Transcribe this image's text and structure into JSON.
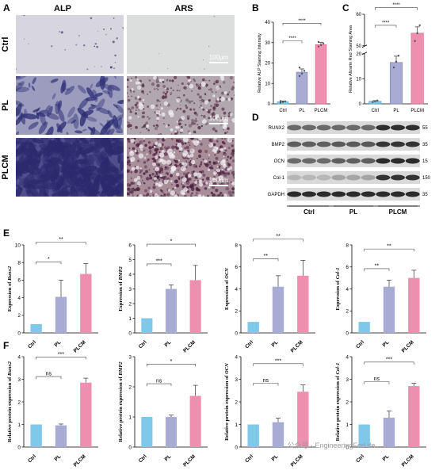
{
  "panel_letters": [
    "A",
    "B",
    "C",
    "D",
    "E",
    "F"
  ],
  "panel_a": {
    "column_headers": [
      "ALP",
      "ARS"
    ],
    "row_labels": [
      "Ctrl",
      "PL",
      "PLCM"
    ],
    "scale_bar_label": "100μm",
    "colors": {
      "alp_ctrl": "#d7d6df",
      "alp_pl": "#9c9cbe",
      "alp_plcm": "#4f4f8e",
      "ars_ctrl": "#dcdede",
      "ars_pl": "#b2a7ae",
      "ars_plcm": "#a88e99"
    }
  },
  "colors": {
    "ctrl": "#7fc8ea",
    "pl": "#a8abd4",
    "plcm": "#ef8fb0",
    "ctrl_edge": "#4ca3cf",
    "pl_edge": "#7a7eb6",
    "plcm_edge": "#d8618f"
  },
  "chart_data": [
    {
      "id": "B",
      "type": "bar",
      "categories": [
        "Ctrl",
        "PL",
        "PLCM"
      ],
      "values": [
        1,
        15.5,
        29
      ],
      "errors": [
        0.4,
        1.6,
        1.1
      ],
      "points": [
        [
          0.6,
          0.9,
          1.2,
          1.4
        ],
        [
          13.6,
          14.8,
          16.2,
          17.8
        ],
        [
          28.1,
          28.8,
          29.6,
          30.3
        ]
      ],
      "ylabel": "Relative ALP Staining Intensity",
      "ylim": [
        0,
        40
      ],
      "yticks": [
        0,
        10,
        20,
        30,
        40
      ],
      "significance": [
        {
          "from": 0,
          "to": 1,
          "label": "****"
        },
        {
          "from": 0,
          "to": 2,
          "label": "****"
        }
      ]
    },
    {
      "id": "C",
      "type": "bar",
      "categories": [
        "Ctrl",
        "PL",
        "PLCM"
      ],
      "values": [
        1,
        16.5,
        54
      ],
      "errors": [
        0.3,
        2.5,
        2
      ],
      "points": [
        [
          0.7,
          1.0,
          1.3
        ],
        [
          14.5,
          16.8,
          19.2
        ],
        [
          51.5,
          54,
          56.5
        ]
      ],
      "ylabel": "Relative Alizarin Red Staining Area",
      "axis_break": true,
      "yticks": [
        0,
        10,
        20,
        50,
        60
      ],
      "significance": [
        {
          "from": 0,
          "to": 1,
          "label": "****"
        },
        {
          "from": 0,
          "to": 2,
          "label": "****"
        }
      ]
    },
    {
      "id": "E1",
      "type": "bar",
      "categories": [
        "Ctrl",
        "PL",
        "PLCM"
      ],
      "values": [
        1,
        4.1,
        6.7
      ],
      "errors": [
        0,
        1.9,
        1.2
      ],
      "ylabel": "Expression of ",
      "ylabel_gene": "Runx2",
      "ylim": [
        0,
        10
      ],
      "yticks": [
        0,
        2,
        4,
        6,
        8,
        10
      ],
      "significance": [
        {
          "from": 0,
          "to": 1,
          "label": "*"
        },
        {
          "from": 0,
          "to": 2,
          "label": "**"
        }
      ]
    },
    {
      "id": "E2",
      "type": "bar",
      "categories": [
        "Ctrl",
        "PL",
        "PLCM"
      ],
      "values": [
        1,
        3.0,
        3.6
      ],
      "errors": [
        0,
        0.28,
        1.0
      ],
      "ylabel": "Expression of ",
      "ylabel_gene": "BMP2",
      "ylim": [
        0,
        6
      ],
      "yticks": [
        0,
        1,
        2,
        3,
        4,
        5,
        6
      ],
      "significance": [
        {
          "from": 0,
          "to": 1,
          "label": "***"
        },
        {
          "from": 0,
          "to": 2,
          "label": "*"
        }
      ]
    },
    {
      "id": "E3",
      "type": "bar",
      "categories": [
        "Ctrl",
        "PL",
        "PLCM"
      ],
      "values": [
        1,
        4.2,
        5.2
      ],
      "errors": [
        0,
        1.0,
        1.4
      ],
      "ylabel": "Expression of ",
      "ylabel_gene": "OCN",
      "ylim": [
        0,
        8
      ],
      "yticks": [
        0,
        2,
        4,
        6,
        8
      ],
      "significance": [
        {
          "from": 0,
          "to": 1,
          "label": "**"
        },
        {
          "from": 0,
          "to": 2,
          "label": "**"
        }
      ]
    },
    {
      "id": "E4",
      "type": "bar",
      "categories": [
        "Ctrl",
        "PL",
        "PLCM"
      ],
      "values": [
        1,
        4.2,
        5.0
      ],
      "errors": [
        0,
        0.6,
        0.7
      ],
      "ylabel": "Expression of ",
      "ylabel_gene": "Col-1",
      "ylim": [
        0,
        8
      ],
      "yticks": [
        0,
        2,
        4,
        6,
        8
      ],
      "significance": [
        {
          "from": 0,
          "to": 1,
          "label": "**"
        },
        {
          "from": 0,
          "to": 2,
          "label": "**"
        }
      ]
    },
    {
      "id": "F1",
      "type": "bar",
      "categories": [
        "Ctrl",
        "PL",
        "PLCM"
      ],
      "values": [
        1,
        0.96,
        2.85
      ],
      "errors": [
        0,
        0.06,
        0.2
      ],
      "ylabel": "Relative protein expression of ",
      "ylabel_gene": "Runx2",
      "ylim": [
        0,
        4
      ],
      "yticks": [
        0,
        1,
        2,
        3,
        4
      ],
      "significance": [
        {
          "from": 0,
          "to": 1,
          "label": "ns"
        },
        {
          "from": 0,
          "to": 2,
          "label": "***"
        }
      ]
    },
    {
      "id": "F2",
      "type": "bar",
      "categories": [
        "Ctrl",
        "PL",
        "PLCM"
      ],
      "values": [
        1,
        1.0,
        1.7
      ],
      "errors": [
        0,
        0.06,
        0.35
      ],
      "ylabel": "Relative protein expression of ",
      "ylabel_gene": "BMP2",
      "ylim": [
        0,
        3
      ],
      "yticks": [
        0,
        1,
        2,
        3
      ],
      "significance": [
        {
          "from": 0,
          "to": 1,
          "label": "ns"
        },
        {
          "from": 0,
          "to": 2,
          "label": "*"
        }
      ]
    },
    {
      "id": "F3",
      "type": "bar",
      "categories": [
        "Ctrl",
        "PL",
        "PLCM"
      ],
      "values": [
        1,
        1.1,
        2.45
      ],
      "errors": [
        0,
        0.18,
        0.3
      ],
      "ylabel": "Relative protein expression of ",
      "ylabel_gene": "OCN",
      "ylim": [
        0,
        4
      ],
      "yticks": [
        0,
        1,
        2,
        3,
        4
      ],
      "significance": [
        {
          "from": 0,
          "to": 1,
          "label": "ns"
        },
        {
          "from": 0,
          "to": 2,
          "label": "***"
        }
      ]
    },
    {
      "id": "F4",
      "type": "bar",
      "categories": [
        "Ctrl",
        "PL",
        "PLCM"
      ],
      "values": [
        1,
        1.3,
        2.7
      ],
      "errors": [
        0,
        0.3,
        0.12
      ],
      "ylabel": "Relative protein expression of ",
      "ylabel_gene": "Col-1",
      "ylim": [
        0,
        4
      ],
      "yticks": [
        0,
        1,
        2,
        3,
        4
      ],
      "significance": [
        {
          "from": 0,
          "to": 1,
          "label": "ns"
        },
        {
          "from": 0,
          "to": 2,
          "label": "***"
        }
      ]
    }
  ],
  "blot": {
    "proteins": [
      {
        "name": "RUNX2",
        "kda": "55",
        "intensity": [
          0.55,
          0.55,
          0.55,
          0.55,
          0.55,
          0.55,
          0.8,
          0.8,
          0.8
        ]
      },
      {
        "name": "BMP2",
        "kda": "35",
        "intensity": [
          0.6,
          0.6,
          0.6,
          0.62,
          0.62,
          0.62,
          0.78,
          0.78,
          0.78
        ]
      },
      {
        "name": "OCN",
        "kda": "15",
        "intensity": [
          0.55,
          0.55,
          0.55,
          0.6,
          0.6,
          0.6,
          0.82,
          0.82,
          0.82
        ]
      },
      {
        "name": "Col-1",
        "kda": "150",
        "intensity": [
          0.22,
          0.22,
          0.22,
          0.3,
          0.3,
          0.3,
          0.78,
          0.78,
          0.78
        ]
      },
      {
        "name": "GAPDH",
        "kda": "35",
        "intensity": [
          0.82,
          0.82,
          0.82,
          0.82,
          0.82,
          0.82,
          0.82,
          0.82,
          0.82
        ]
      }
    ],
    "groups": [
      "Ctrl",
      "PL",
      "PLCM"
    ]
  },
  "watermark": "公众号 · EngineeringForLife"
}
